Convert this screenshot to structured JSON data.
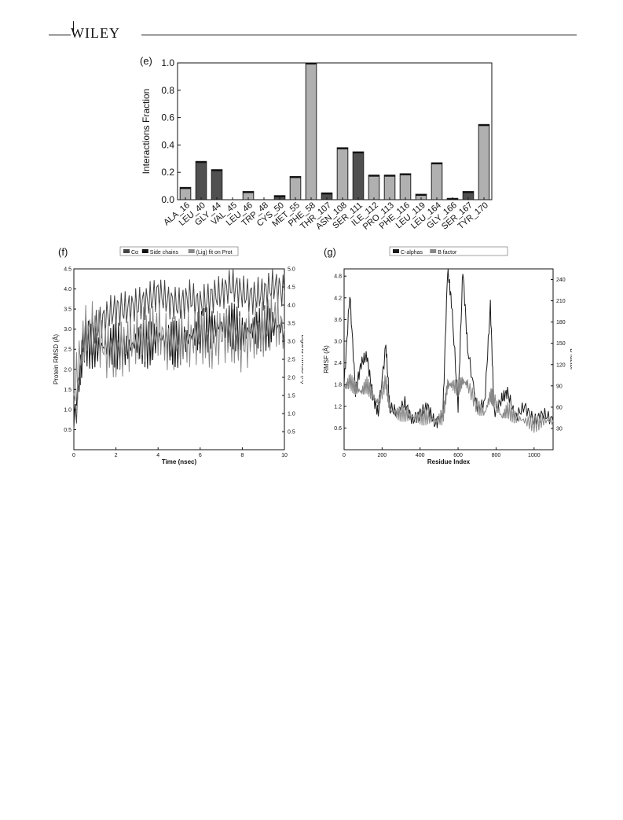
{
  "header": {
    "publisher": "WILEY"
  },
  "panels": {
    "e": "(e)",
    "f": "(f)",
    "g": "(g)"
  },
  "chart_data": [
    {
      "panel": "(e)",
      "type": "bar",
      "ylabel": "Interactions Fraction",
      "ylim": [
        0,
        1.0
      ],
      "yticks": [
        "0.0",
        "0.2",
        "0.4",
        "0.6",
        "0.8",
        "1.0"
      ],
      "categories": [
        "ALA_16",
        "LEU_40",
        "GLY_44",
        "VAL_45",
        "LEU_46",
        "TRP_48",
        "CYS_50",
        "MET_55",
        "PHE_58",
        "THR_107",
        "ASN_108",
        "SER_111",
        "ILE_112",
        "PRO_113",
        "PHE_116",
        "LEU_119",
        "LEU_164",
        "GLY_166",
        "SER_167",
        "TYR_170"
      ],
      "values": [
        0.09,
        0.28,
        0.22,
        0.0,
        0.06,
        0.0,
        0.03,
        0.17,
        1.0,
        0.05,
        0.38,
        0.35,
        0.18,
        0.18,
        0.19,
        0.04,
        0.27,
        0.01,
        0.06,
        0.55
      ],
      "colors": [
        "#b0b0b0",
        "#505050",
        "#505050",
        "#505050",
        "#b0b0b0",
        "#b0b0b0",
        "#505050",
        "#b0b0b0",
        "#b0b0b0",
        "#505050",
        "#b0b0b0",
        "#505050",
        "#b0b0b0",
        "#b0b0b0",
        "#b0b0b0",
        "#b0b0b0",
        "#b0b0b0",
        "#b0b0b0",
        "#505050",
        "#b0b0b0"
      ]
    },
    {
      "panel": "(f)",
      "type": "line",
      "title": "",
      "legend": [
        "Cα",
        "Side chains",
        "(Lig) fit on Prot"
      ],
      "xlabel": "Time (nsec)",
      "ylabel": "Protein RMSD (Å)",
      "y2label": "Ligand RMSD (Å)",
      "xlim": [
        0,
        10
      ],
      "ylim": [
        0,
        4.5
      ],
      "y2lim": [
        0,
        5.0
      ],
      "xticks": [
        "0",
        "2",
        "4",
        "6",
        "8",
        "10"
      ],
      "yticks": [
        "0.5",
        "1.0",
        "1.5",
        "2.0",
        "2.5",
        "3.0",
        "3.5",
        "4.0",
        "4.5"
      ],
      "y2ticks": [
        "0.5",
        "1.0",
        "1.5",
        "2.0",
        "2.5",
        "3.0",
        "3.5",
        "4.0",
        "4.5",
        "5.0"
      ],
      "x": [
        0,
        0.5,
        1,
        1.5,
        2,
        2.5,
        3,
        3.5,
        4,
        4.5,
        5,
        5.5,
        6,
        6.5,
        7,
        7.5,
        8,
        8.5,
        9,
        9.5,
        10
      ],
      "series": [
        {
          "name": "Cα",
          "values": [
            0.5,
            2.9,
            3.0,
            3.3,
            3.5,
            3.5,
            3.6,
            3.7,
            3.9,
            3.7,
            3.6,
            3.8,
            3.6,
            3.8,
            3.9,
            4.1,
            3.9,
            3.8,
            3.9,
            4.1,
            3.9
          ]
        },
        {
          "name": "Side chains",
          "values": [
            0.8,
            2.7,
            2.5,
            2.6,
            2.6,
            2.5,
            2.7,
            2.6,
            2.8,
            2.7,
            2.6,
            2.8,
            2.9,
            3.0,
            3.1,
            3.1,
            2.9,
            3.0,
            3.0,
            3.1,
            3.0
          ]
        },
        {
          "name": "(Lig) fit on Prot",
          "values": [
            1.4,
            2.9,
            3.0,
            2.5,
            2.4,
            2.6,
            2.8,
            2.9,
            3.0,
            2.6,
            2.8,
            2.7,
            2.9,
            2.6,
            2.9,
            2.8,
            2.6,
            2.9,
            3.0,
            3.3,
            3.0
          ]
        }
      ]
    },
    {
      "panel": "(g)",
      "type": "line",
      "legend": [
        "C-alphas",
        "B factor"
      ],
      "xlabel": "Residue Index",
      "ylabel": "RMSF (Å)",
      "y2label": "B factor",
      "xlim": [
        0,
        1100
      ],
      "ylim": [
        0,
        5.0
      ],
      "y2lim": [
        0,
        255
      ],
      "xticks": [
        "0",
        "200",
        "400",
        "600",
        "800",
        "1000"
      ],
      "yticks": [
        "0.6",
        "1.2",
        "1.8",
        "2.4",
        "3.0",
        "3.6",
        "4.2",
        "4.8"
      ],
      "y2ticks": [
        "30",
        "60",
        "90",
        "120",
        "150",
        "180",
        "210",
        "240"
      ],
      "x": [
        0,
        30,
        60,
        90,
        120,
        150,
        180,
        220,
        240,
        280,
        320,
        360,
        400,
        440,
        480,
        520,
        545,
        565,
        600,
        625,
        650,
        700,
        740,
        770,
        790,
        830,
        860,
        900,
        950,
        1000,
        1050,
        1100
      ],
      "series": [
        {
          "name": "C-alphas",
          "values": [
            1.8,
            4.3,
            1.6,
            2.4,
            2.6,
            1.5,
            1.0,
            2.9,
            1.2,
            1.0,
            1.3,
            0.8,
            1.0,
            1.2,
            0.7,
            1.0,
            5.0,
            4.1,
            1.2,
            5.0,
            2.8,
            1.1,
            1.3,
            4.0,
            1.0,
            1.4,
            1.6,
            0.9,
            1.2,
            0.8,
            1.0,
            0.8
          ]
        },
        {
          "name": "B factor",
          "values": [
            1.7,
            1.9,
            1.7,
            1.6,
            1.8,
            1.5,
            1.3,
            1.9,
            1.1,
            1.0,
            1.0,
            0.9,
            0.9,
            0.9,
            0.8,
            0.9,
            1.8,
            1.8,
            1.7,
            1.9,
            1.8,
            1.2,
            1.0,
            1.5,
            1.4,
            0.9,
            1.1,
            0.9,
            0.8,
            0.7,
            0.8,
            0.8
          ]
        }
      ]
    }
  ]
}
